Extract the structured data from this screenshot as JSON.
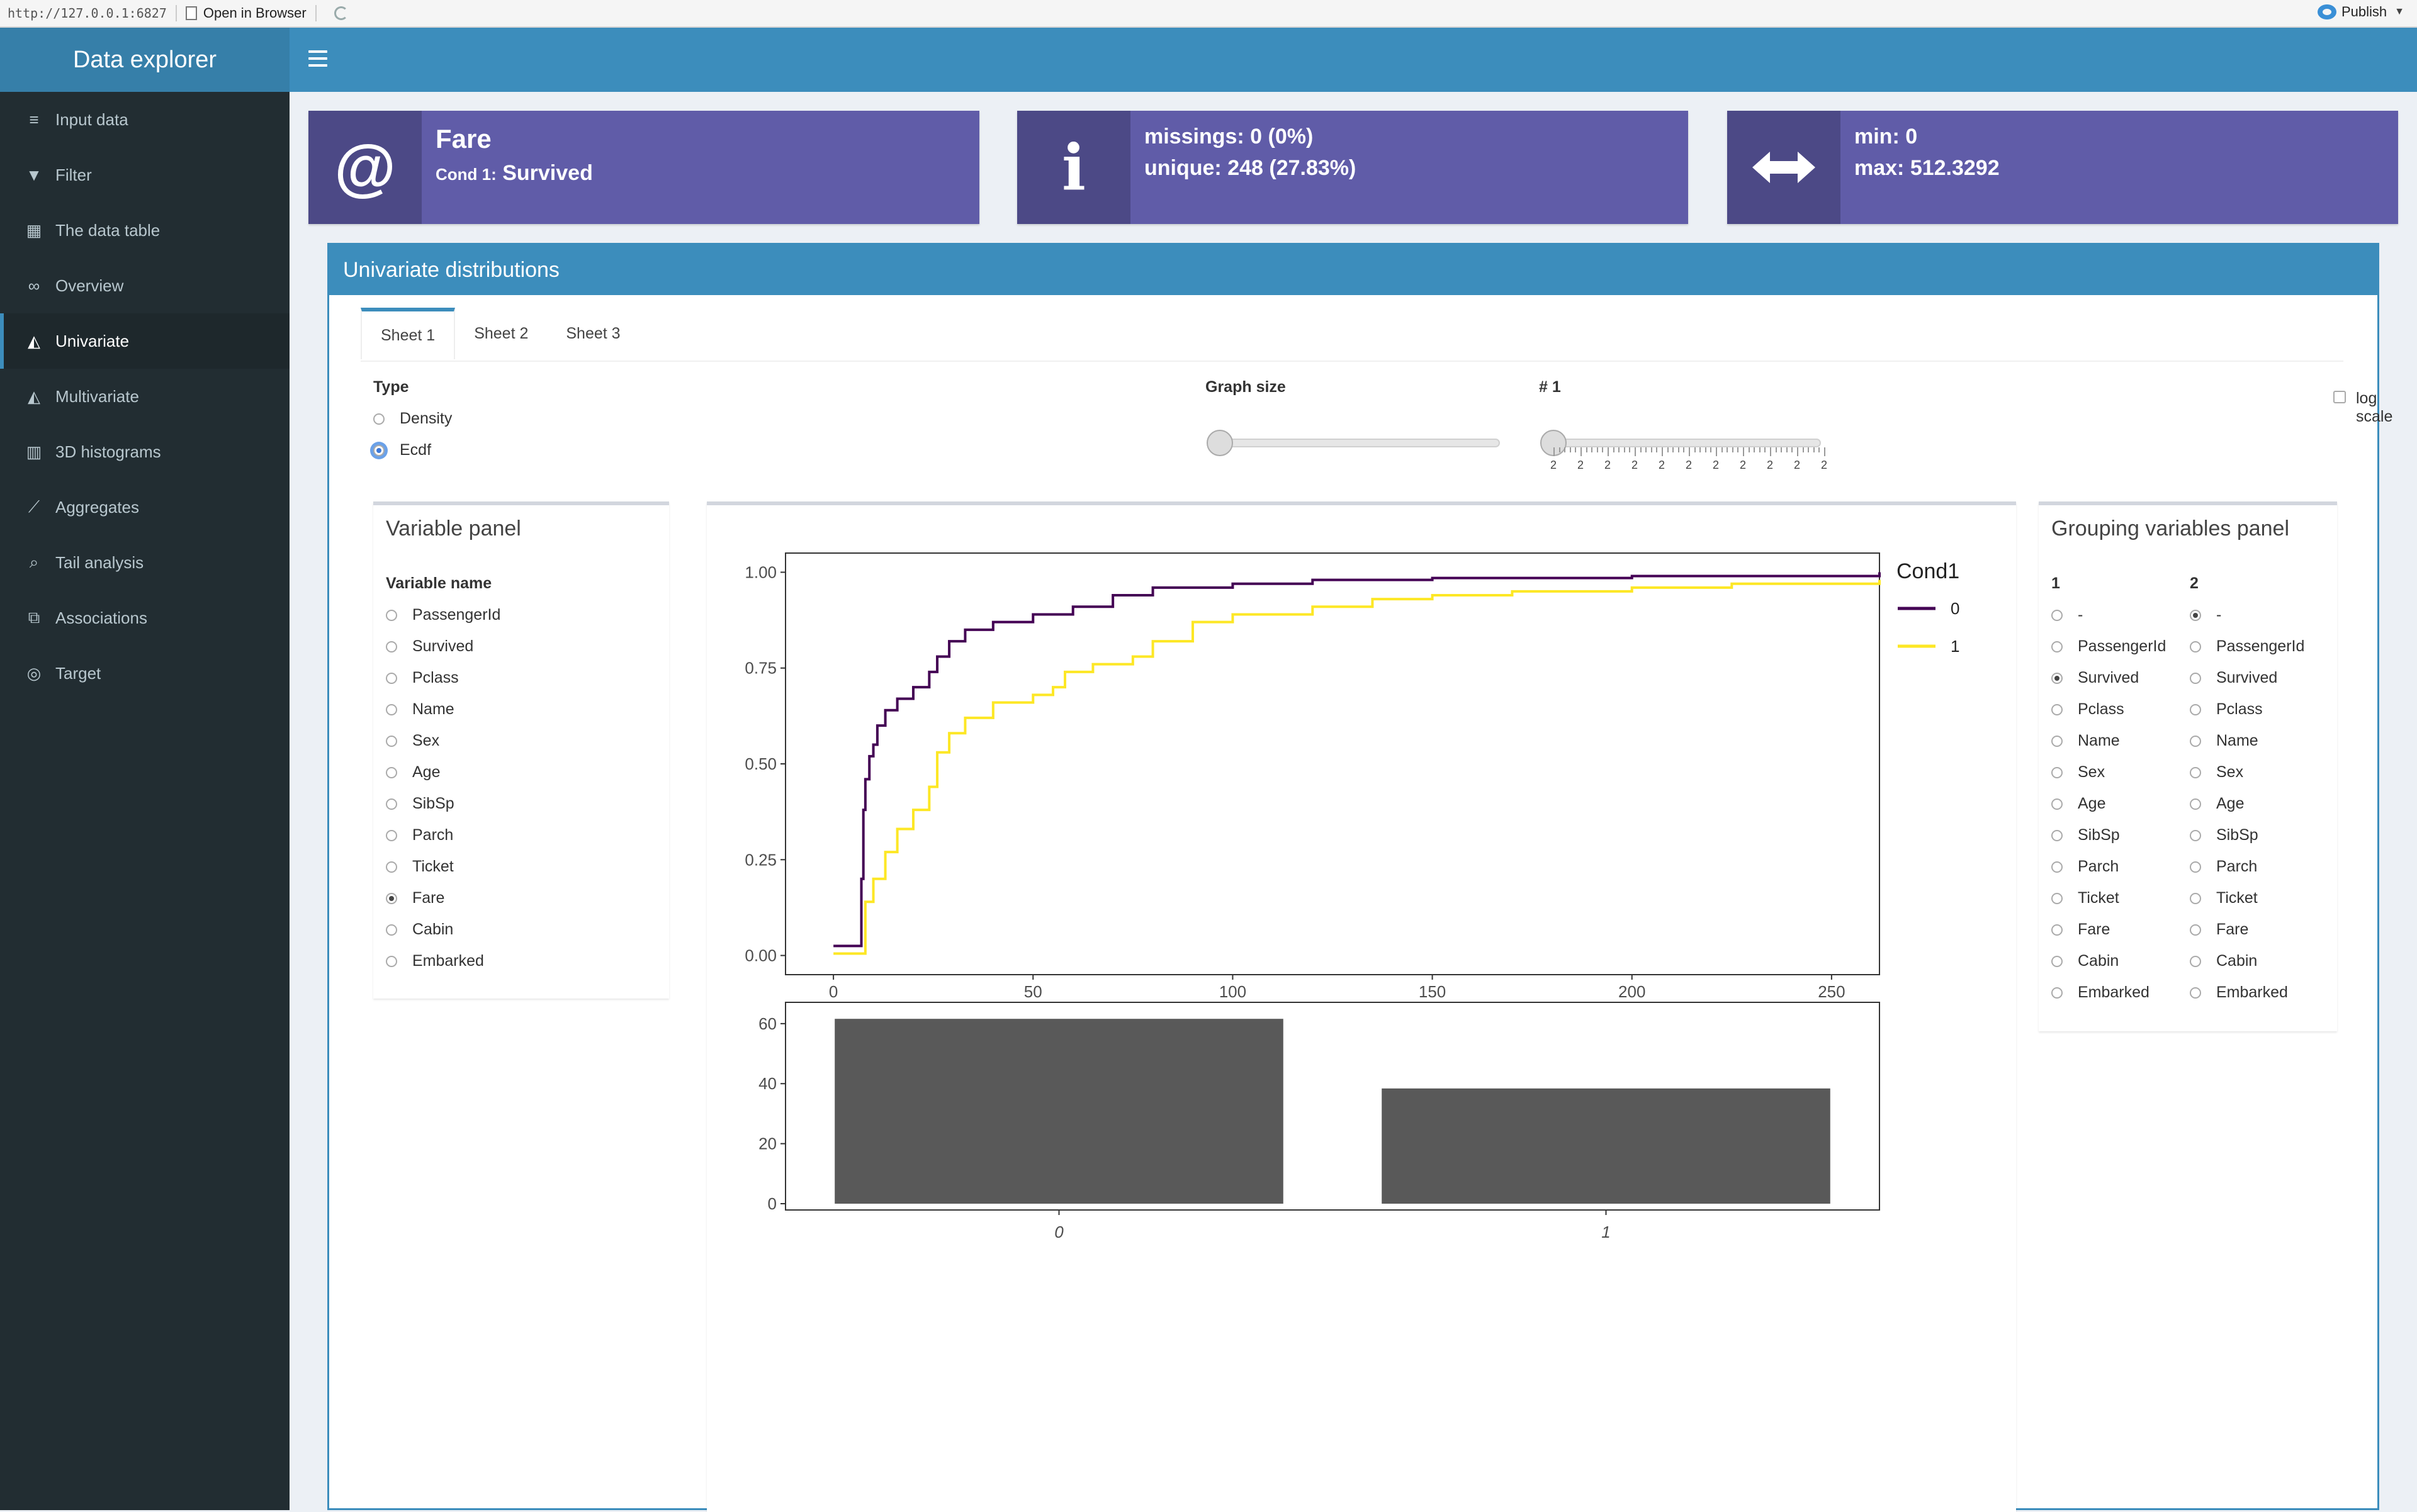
{
  "browser": {
    "url": "http://127.0.0.1:6827",
    "open_in_browser": "Open in Browser",
    "publish": "Publish"
  },
  "app": {
    "title": "Data explorer"
  },
  "sidebar": {
    "items": [
      {
        "label": "Input data",
        "icon": "database-icon"
      },
      {
        "label": "Filter",
        "icon": "filter-icon"
      },
      {
        "label": "The data table",
        "icon": "table-icon"
      },
      {
        "label": "Overview",
        "icon": "binoculars-icon"
      },
      {
        "label": "Univariate",
        "icon": "area-chart-icon",
        "active": true
      },
      {
        "label": "Multivariate",
        "icon": "area-chart-icon"
      },
      {
        "label": "3D histograms",
        "icon": "bar-chart-icon"
      },
      {
        "label": "Aggregates",
        "icon": "line-chart-icon"
      },
      {
        "label": "Tail analysis",
        "icon": "search-icon"
      },
      {
        "label": "Associations",
        "icon": "sitemap-icon"
      },
      {
        "label": "Target",
        "icon": "bullseye-icon"
      }
    ]
  },
  "infoboxes": {
    "var": {
      "name": "Fare",
      "cond_label": "Cond 1:",
      "cond_value": "Survived",
      "icon": "at-icon"
    },
    "stats": {
      "missings": "missings: 0 (0%)",
      "unique": "unique: 248 (27.83%)",
      "icon": "info-icon"
    },
    "range": {
      "min": "min: 0",
      "max": "max: 512.3292",
      "icon": "arrows-h-icon"
    }
  },
  "main": {
    "title": "Univariate distributions",
    "tabs": [
      "Sheet 1",
      "Sheet 2",
      "Sheet 3"
    ],
    "type_label": "Type",
    "type_options": [
      "Density",
      "Ecdf"
    ],
    "type_selected": "Ecdf",
    "graph_size_label": "Graph size",
    "bins_label": "# 1",
    "bins_tick_labels": [
      "2",
      "2",
      "2",
      "2",
      "2",
      "2",
      "2",
      "2",
      "2",
      "2",
      "2"
    ],
    "log_scale_label": "log scale"
  },
  "variable_panel": {
    "title": "Variable panel",
    "column_label": "Variable name",
    "variables": [
      "PassengerId",
      "Survived",
      "Pclass",
      "Name",
      "Sex",
      "Age",
      "SibSp",
      "Parch",
      "Ticket",
      "Fare",
      "Cabin",
      "Embarked"
    ],
    "selected": "Fare"
  },
  "grouping_panel": {
    "title": "Grouping variables panel",
    "col1_label": "1",
    "col2_label": "2",
    "options": [
      "-",
      "PassengerId",
      "Survived",
      "Pclass",
      "Name",
      "Sex",
      "Age",
      "SibSp",
      "Parch",
      "Ticket",
      "Fare",
      "Cabin",
      "Embarked"
    ],
    "selected_1": "Survived",
    "selected_2": "-"
  },
  "chart_data": [
    {
      "type": "line",
      "legend_title": "Cond1",
      "legend_position": "right",
      "xlim": [
        -12,
        262
      ],
      "ylim": [
        -0.05,
        1.05
      ],
      "x_ticks": [
        0,
        50,
        100,
        150,
        200,
        250
      ],
      "y_ticks": [
        0.0,
        0.25,
        0.5,
        0.75,
        1.0
      ],
      "y_tick_labels": [
        "0.00",
        "0.25",
        "0.50",
        "0.75",
        "1.00"
      ],
      "series": [
        {
          "name": "0",
          "color": "#440154",
          "points": [
            [
              0,
              0.025
            ],
            [
              6,
              0.025
            ],
            [
              7,
              0.2
            ],
            [
              7.5,
              0.38
            ],
            [
              8,
              0.46
            ],
            [
              9,
              0.52
            ],
            [
              10,
              0.55
            ],
            [
              11,
              0.6
            ],
            [
              13,
              0.64
            ],
            [
              16,
              0.67
            ],
            [
              20,
              0.7
            ],
            [
              24,
              0.74
            ],
            [
              26,
              0.78
            ],
            [
              29,
              0.82
            ],
            [
              33,
              0.85
            ],
            [
              40,
              0.87
            ],
            [
              50,
              0.89
            ],
            [
              60,
              0.91
            ],
            [
              70,
              0.94
            ],
            [
              80,
              0.96
            ],
            [
              100,
              0.97
            ],
            [
              120,
              0.98
            ],
            [
              150,
              0.985
            ],
            [
              200,
              0.99
            ],
            [
              262,
              1.0
            ]
          ]
        },
        {
          "name": "1",
          "color": "#fde725",
          "points": [
            [
              0,
              0.005
            ],
            [
              7,
              0.005
            ],
            [
              8,
              0.14
            ],
            [
              10,
              0.2
            ],
            [
              13,
              0.27
            ],
            [
              16,
              0.33
            ],
            [
              20,
              0.38
            ],
            [
              24,
              0.44
            ],
            [
              26,
              0.53
            ],
            [
              29,
              0.58
            ],
            [
              33,
              0.62
            ],
            [
              40,
              0.66
            ],
            [
              50,
              0.68
            ],
            [
              55,
              0.7
            ],
            [
              58,
              0.74
            ],
            [
              65,
              0.76
            ],
            [
              75,
              0.78
            ],
            [
              80,
              0.82
            ],
            [
              90,
              0.87
            ],
            [
              100,
              0.89
            ],
            [
              120,
              0.91
            ],
            [
              135,
              0.93
            ],
            [
              150,
              0.94
            ],
            [
              170,
              0.95
            ],
            [
              200,
              0.96
            ],
            [
              225,
              0.97
            ],
            [
              262,
              0.98
            ]
          ]
        }
      ]
    },
    {
      "type": "bar",
      "categories": [
        "0",
        "1"
      ],
      "values": [
        61.6,
        38.4
      ],
      "ylim": [
        0,
        65
      ],
      "y_ticks": [
        0,
        20,
        40,
        60
      ],
      "color": "#595959"
    }
  ]
}
